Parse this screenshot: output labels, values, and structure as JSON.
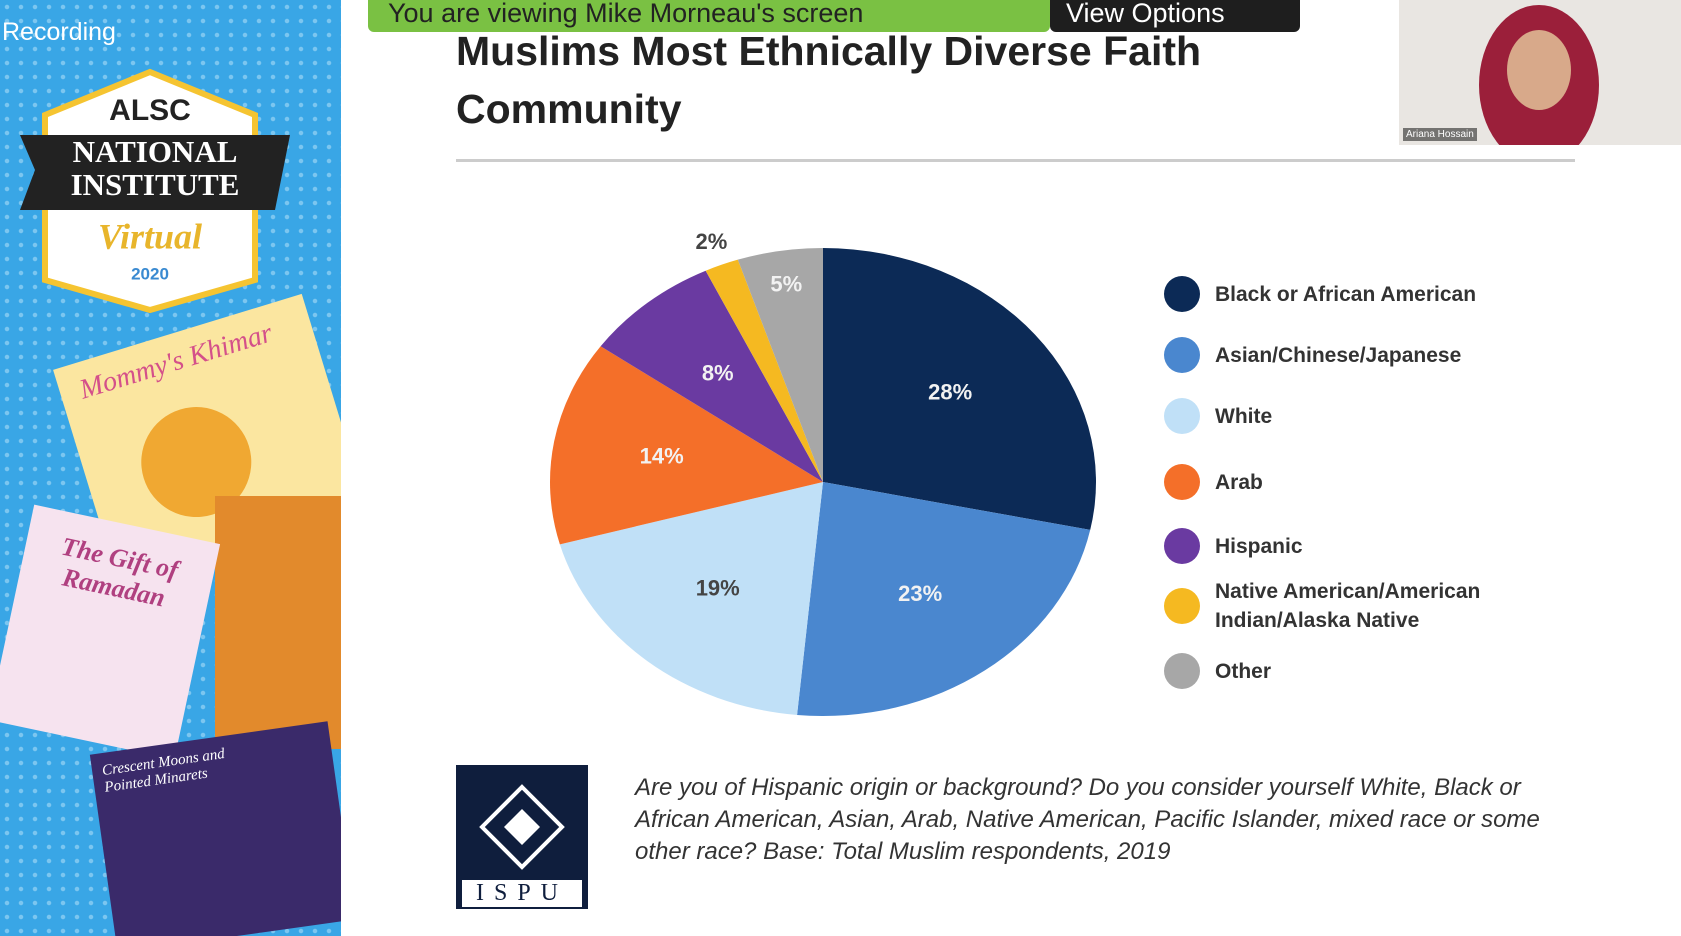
{
  "zoom": {
    "recording": "Recording",
    "banner": "You are viewing Mike Morneau's screen",
    "view_options": "View Options",
    "participant": "Ariana Hossain"
  },
  "sidebar": {
    "badge": {
      "top": "ALSC",
      "main": "NATIONAL INSTITUTE",
      "sub": "Virtual",
      "year": "2020"
    },
    "books": [
      "Mommy's Khimar",
      "The Gift of Ramadan",
      "Crescent Moons and Pointed Minarets"
    ]
  },
  "chart_data": {
    "type": "pie",
    "title": "Muslims Most Ethnically Diverse Faith Community",
    "categories": [
      "Black or African American",
      "Asian/Chinese/Japanese",
      "White",
      "Arab",
      "Hispanic",
      "Native American/American Indian/Alaska Native",
      "Other"
    ],
    "values": [
      28,
      23,
      19,
      14,
      8,
      2,
      5
    ],
    "value_labels": [
      "28%",
      "23%",
      "19%",
      "14%",
      "8%",
      "2%",
      "5%"
    ],
    "colors": [
      "#0c2a56",
      "#4a87cf",
      "#c0e0f7",
      "#f46f29",
      "#6a3aa1",
      "#f5b921",
      "#a7a7a7"
    ],
    "legend": "right"
  },
  "footnote": {
    "logo": "ISPU",
    "text": "Are you of Hispanic origin or background? Do you consider yourself White, Black or African American, Asian, Arab, Native American, Pacific Islander, mixed race or some other race? Base: Total Muslim respondents, 2019"
  }
}
